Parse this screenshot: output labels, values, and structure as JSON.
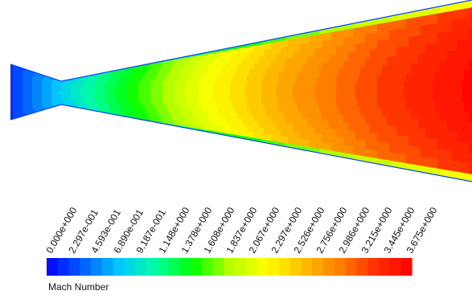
{
  "figure": {
    "variable_title": "Mach Number",
    "scale_type": "linear",
    "colormap": [
      "#0000ff",
      "#0060ff",
      "#00c8ff",
      "#00ffa0",
      "#00ff00",
      "#b4ff00",
      "#ffff00",
      "#ffc000",
      "#ff8000",
      "#ff3000",
      "#ff0000"
    ]
  },
  "chart_data": {
    "type": "heatmap",
    "title": "Mach Number",
    "range": [
      0.0,
      3.675
    ],
    "tick_values": [
      0.0,
      0.2297,
      0.4593,
      0.689,
      0.9187,
      1.148,
      1.378,
      1.608,
      1.837,
      2.067,
      2.297,
      2.526,
      2.756,
      2.986,
      3.215,
      3.445,
      3.675
    ],
    "tick_labels": [
      "0.000e+000",
      "2.297e-001",
      "4.593e-001",
      "6.890e-001",
      "9.187e-001",
      "1.148e+000",
      "1.378e+000",
      "1.608e+000",
      "1.837e+000",
      "2.067e+000",
      "2.297e+000",
      "2.526e+000",
      "2.756e+000",
      "2.986e+000",
      "3.215e+000",
      "3.445e+000",
      "3.675e+000"
    ],
    "num_color_bands": 33,
    "field_profile": {
      "axial_station": [
        0.0,
        0.12,
        0.24,
        0.4,
        0.6,
        0.8,
        1.0
      ],
      "core_mach": [
        0.2,
        0.85,
        1.4,
        2.1,
        2.75,
        3.25,
        3.6
      ]
    }
  }
}
